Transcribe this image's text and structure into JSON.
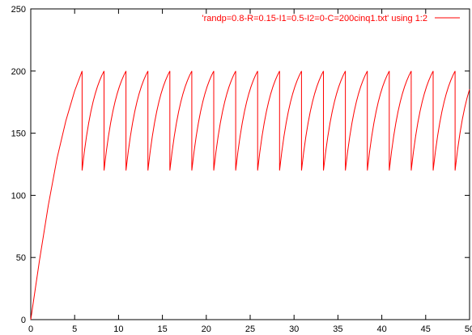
{
  "chart_data": {
    "type": "line",
    "title": "",
    "xlabel": "",
    "ylabel": "",
    "xlim": [
      0,
      50
    ],
    "ylim": [
      0,
      250
    ],
    "x_ticks": [
      0,
      5,
      10,
      15,
      20,
      25,
      30,
      35,
      40,
      45,
      50
    ],
    "y_ticks": [
      0,
      50,
      100,
      150,
      200,
      250
    ],
    "x_tick_labels": [
      "0",
      "5",
      "10",
      "15",
      "20",
      "25",
      "30",
      "35",
      "40",
      "45",
      "50"
    ],
    "y_tick_labels": [
      "0",
      "50",
      "100",
      "150",
      "200",
      "250"
    ],
    "legend_position": "top-right",
    "series": [
      {
        "name": "'randp=0.8-R=0.15-I1=0.5-I2=0-C=200cinq1.txt' using 1:2",
        "color": "#ff0000",
        "initial_rise": [
          [
            0,
            0
          ],
          [
            1,
            48
          ],
          [
            2,
            92
          ],
          [
            3,
            130
          ],
          [
            4,
            160
          ],
          [
            5,
            184
          ],
          [
            5.85,
            200
          ]
        ],
        "sawtooth": {
          "low": 120,
          "high": 200,
          "drop_x": [
            5.85,
            8.35,
            10.85,
            13.35,
            15.85,
            18.35,
            20.85,
            23.35,
            25.85,
            28.35,
            30.85,
            33.35,
            35.85,
            38.35,
            40.85,
            43.35,
            45.85,
            48.35
          ],
          "end": [
            50,
            168
          ]
        }
      }
    ]
  }
}
